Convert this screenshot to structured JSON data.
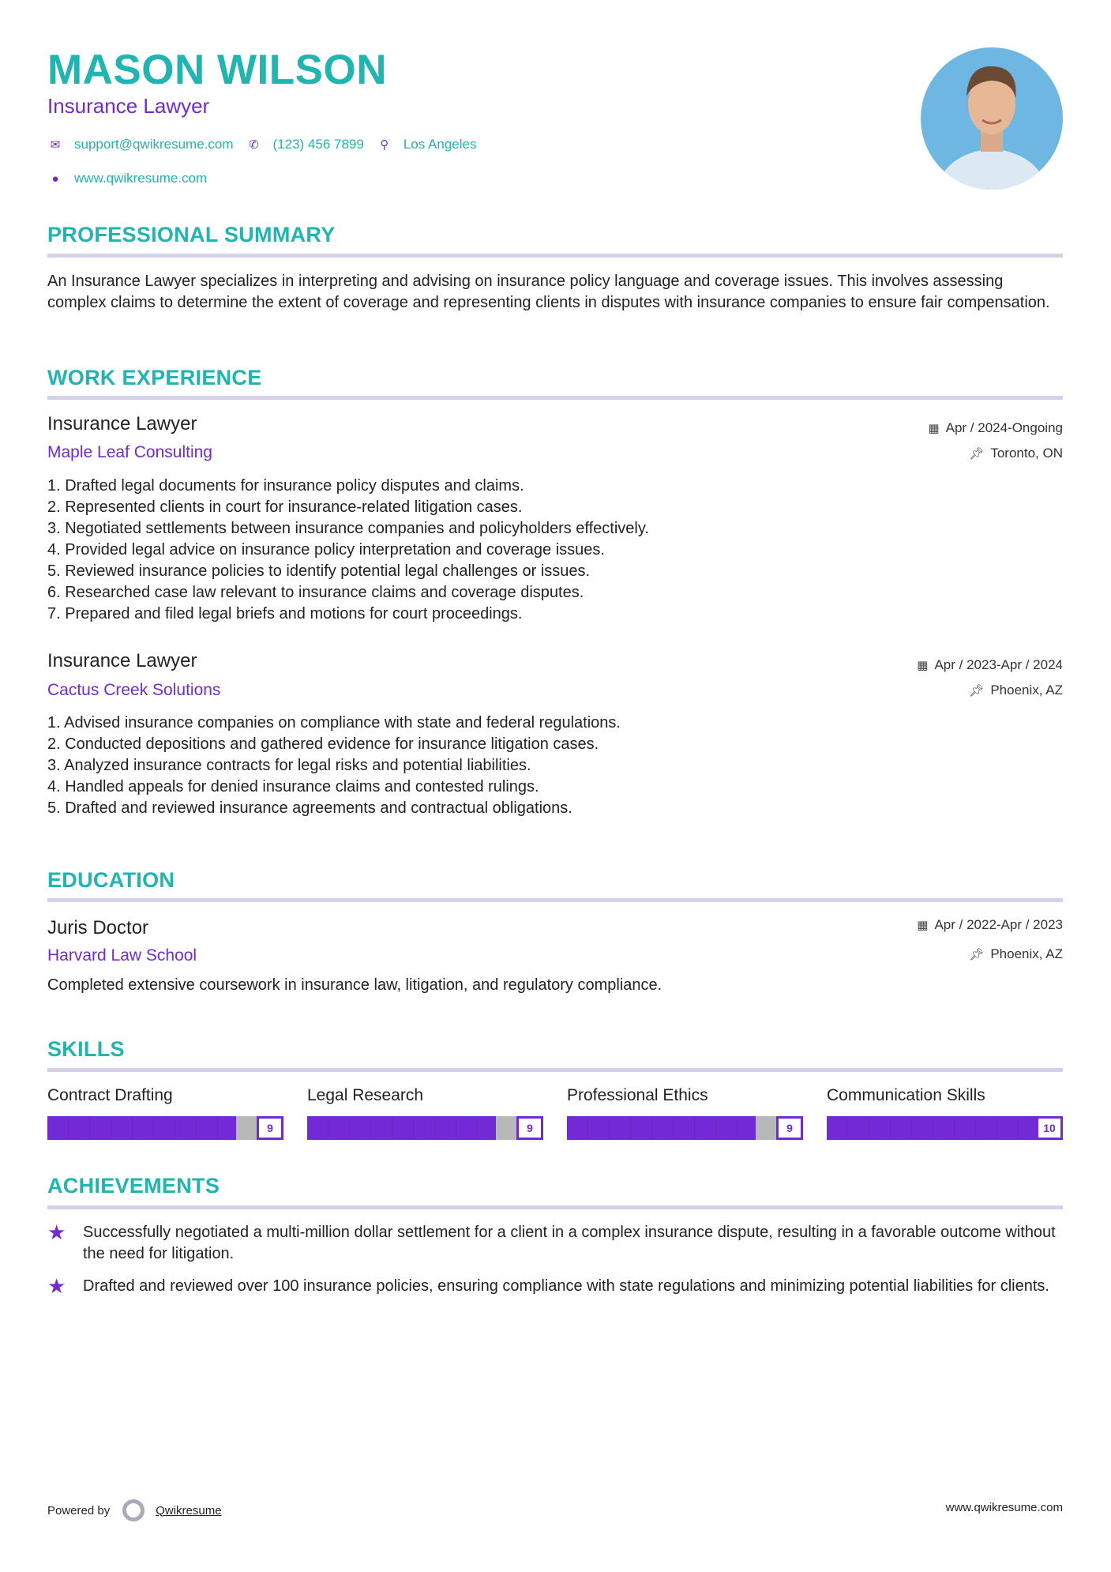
{
  "header": {
    "name": "MASON WILSON",
    "title": "Insurance Lawyer",
    "email": "support@qwikresume.com",
    "phone": "(123) 456 7899",
    "location": "Los Angeles",
    "website": "www.qwikresume.com"
  },
  "colors": {
    "accent": "#1fb5b0",
    "secondary": "#7229d6",
    "rule": "#d4d2ea"
  },
  "summary": {
    "heading": "PROFESSIONAL SUMMARY",
    "text": "An Insurance Lawyer specializes in interpreting and advising on insurance policy language and coverage issues. This involves assessing complex claims to determine the extent of coverage and representing clients in disputes with insurance companies to ensure fair compensation."
  },
  "experience": {
    "heading": "WORK EXPERIENCE",
    "jobs": [
      {
        "title": "Insurance Lawyer",
        "company": "Maple Leaf Consulting",
        "dates": "Apr / 2024-Ongoing",
        "location": "Toronto, ON",
        "bullets": [
          "1. Drafted legal documents for insurance policy disputes and claims.",
          "2. Represented clients in court for insurance-related litigation cases.",
          "3. Negotiated settlements between insurance companies and policyholders effectively.",
          "4. Provided legal advice on insurance policy interpretation and coverage issues.",
          "5. Reviewed insurance policies to identify potential legal challenges or issues.",
          "6. Researched case law relevant to insurance claims and coverage disputes.",
          "7. Prepared and filed legal briefs and motions for court proceedings."
        ]
      },
      {
        "title": "Insurance Lawyer",
        "company": "Cactus Creek Solutions",
        "dates": "Apr / 2023-Apr / 2024",
        "location": "Phoenix, AZ",
        "bullets": [
          "1. Advised insurance companies on compliance with state and federal regulations.",
          "2. Conducted depositions and gathered evidence for insurance litigation cases.",
          "3. Analyzed insurance contracts for legal risks and potential liabilities.",
          "4. Handled appeals for denied insurance claims and contested rulings.",
          "5. Drafted and reviewed insurance agreements and contractual obligations."
        ]
      }
    ]
  },
  "education": {
    "heading": "EDUCATION",
    "degree": "Juris Doctor",
    "school": "Harvard Law School",
    "dates": "Apr / 2022-Apr / 2023",
    "location": "Phoenix, AZ",
    "description": "Completed extensive coursework in insurance law, litigation, and regulatory compliance."
  },
  "skills": {
    "heading": "SKILLS",
    "items": [
      {
        "name": "Contract Drafting",
        "level": 9
      },
      {
        "name": "Legal Research",
        "level": 9
      },
      {
        "name": "Professional Ethics",
        "level": 9
      },
      {
        "name": "Communication Skills",
        "level": 10
      }
    ]
  },
  "achievements": {
    "heading": "ACHIEVEMENTS",
    "items": [
      "Successfully negotiated a multi-million dollar settlement for a client in a complex insurance dispute, resulting in a favorable outcome without the need for litigation.",
      "Drafted and reviewed over 100 insurance policies, ensuring compliance with state regulations and minimizing potential liabilities for clients."
    ]
  },
  "footer": {
    "powered_by": "Powered by",
    "brand": "Qwikresume",
    "website": "www.qwikresume.com"
  }
}
